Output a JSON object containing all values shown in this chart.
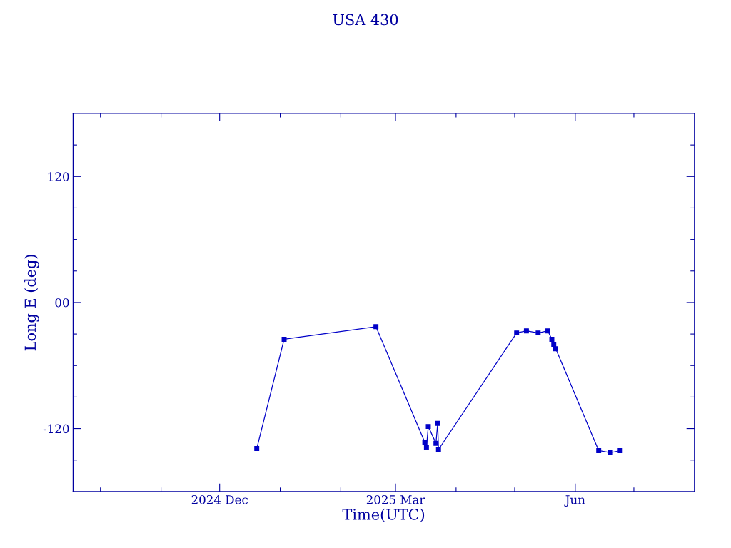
{
  "chart_data": {
    "type": "line",
    "title": "USA 430",
    "xlabel": "Time(UTC)",
    "ylabel": "Long E (deg)",
    "x": [
      "2024-12-20",
      "2025-01-03",
      "2025-02-19",
      "2025-03-16",
      "2025-03-16T20:00",
      "2025-03-17T19:00",
      "2025-03-21T17:00",
      "2025-03-22T14:00",
      "2025-03-23",
      "2025-05-02",
      "2025-05-07",
      "2025-05-13",
      "2025-05-18",
      "2025-05-20",
      "2025-05-21",
      "2025-05-22",
      "2025-06-13",
      "2025-06-19",
      "2025-06-24"
    ],
    "series": [
      {
        "color": "#0000c8",
        "values": [
          -139,
          -35,
          -23,
          -133,
          -138,
          -118,
          -134,
          -115,
          -140,
          -29,
          -27,
          -29,
          -27,
          -35,
          -40,
          -44,
          -141,
          -143,
          -141
        ]
      }
    ],
    "xlim": [
      "2024-09-17",
      "2025-08-01"
    ],
    "xticks": [
      {
        "value": "2024-10-01",
        "label": null
      },
      {
        "value": "2024-11-01",
        "label": null
      },
      {
        "value": "2024-12-01",
        "label": "2024 Dec"
      },
      {
        "value": "2025-01-01",
        "label": null
      },
      {
        "value": "2025-02-01",
        "label": null
      },
      {
        "value": "2025-03-01",
        "label": "2025 Mar"
      },
      {
        "value": "2025-04-01",
        "label": null
      },
      {
        "value": "2025-05-01",
        "label": null
      },
      {
        "value": "2025-06-01",
        "label": "Jun"
      },
      {
        "value": "2025-07-01",
        "label": null
      }
    ],
    "ylim": [
      -180,
      180
    ],
    "yticks": [
      {
        "value": -150,
        "label": null
      },
      {
        "value": -120,
        "label": "-120"
      },
      {
        "value": -90,
        "label": null
      },
      {
        "value": -60,
        "label": null
      },
      {
        "value": -30,
        "label": null
      },
      {
        "value": 0,
        "label": "00"
      },
      {
        "value": 30,
        "label": null
      },
      {
        "value": 60,
        "label": null
      },
      {
        "value": 90,
        "label": null
      },
      {
        "value": 120,
        "label": "120"
      },
      {
        "value": 150,
        "label": null
      }
    ],
    "marker": "square",
    "line_style": "solid",
    "grid": false,
    "legend": false
  }
}
